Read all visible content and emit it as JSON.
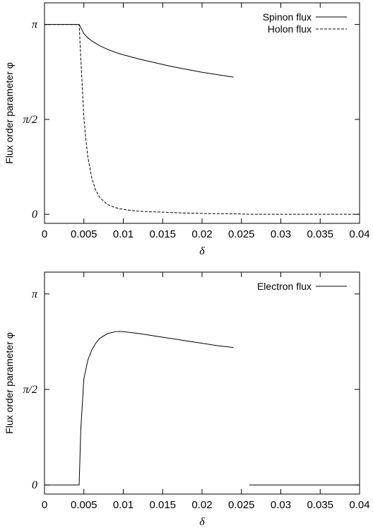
{
  "chart_data": [
    {
      "type": "line",
      "xlabel": "δ",
      "ylabel": "Flux order parameter φ",
      "xlim": [
        0,
        0.04
      ],
      "ylim": [
        -0.15,
        3.5
      ],
      "x_ticks": [
        0,
        0.005,
        0.01,
        0.015,
        0.02,
        0.025,
        0.03,
        0.035,
        0.04
      ],
      "x_tick_labels": [
        "0",
        "0.005",
        "0.01",
        "0.015",
        "0.02",
        "0.025",
        "0.03",
        "0.035",
        "0.04"
      ],
      "y_ticks": [
        0,
        1.5708,
        3.1416
      ],
      "y_tick_labels": [
        "0",
        "π/2",
        "π"
      ],
      "legend_position": "top-right",
      "grid": false,
      "series": [
        {
          "name": "Spinon flux",
          "style": "solid",
          "x": [
            0,
            0.0044,
            0.0046,
            0.005,
            0.0055,
            0.006,
            0.007,
            0.008,
            0.009,
            0.01,
            0.012,
            0.014,
            0.016,
            0.018,
            0.02,
            0.022,
            0.024
          ],
          "y": [
            3.1416,
            3.1416,
            3.09,
            2.99,
            2.92,
            2.87,
            2.79,
            2.73,
            2.68,
            2.64,
            2.57,
            2.51,
            2.45,
            2.4,
            2.35,
            2.31,
            2.27
          ]
        },
        {
          "name": "Holon flux",
          "style": "dashed",
          "x": [
            0,
            0.0044,
            0.0046,
            0.0048,
            0.005,
            0.0052,
            0.0055,
            0.006,
            0.0065,
            0.007,
            0.008,
            0.009,
            0.01,
            0.012,
            0.014,
            0.016,
            0.018,
            0.02,
            0.022,
            0.024,
            0.026,
            0.03,
            0.035,
            0.04
          ],
          "y": [
            3.1416,
            3.1416,
            2.6,
            2.1,
            1.6,
            1.3,
            0.95,
            0.6,
            0.4,
            0.28,
            0.16,
            0.11,
            0.08,
            0.05,
            0.04,
            0.03,
            0.02,
            0.015,
            0.01,
            0.008,
            0,
            0,
            0,
            0
          ]
        }
      ]
    },
    {
      "type": "line",
      "xlabel": "δ",
      "ylabel": "Flux order parameter φ",
      "xlim": [
        0,
        0.04
      ],
      "ylim": [
        -0.15,
        3.5
      ],
      "x_ticks": [
        0,
        0.005,
        0.01,
        0.015,
        0.02,
        0.025,
        0.03,
        0.035,
        0.04
      ],
      "x_tick_labels": [
        "0",
        "0.005",
        "0.01",
        "0.015",
        "0.02",
        "0.025",
        "0.03",
        "0.035",
        "0.04"
      ],
      "y_ticks": [
        0,
        1.5708,
        3.1416
      ],
      "y_tick_labels": [
        "0",
        "π/2",
        "π"
      ],
      "legend_position": "top-right",
      "grid": false,
      "series": [
        {
          "name": "Electron flux",
          "style": "solid",
          "x": [
            0,
            0.0044,
            0.0046,
            0.005,
            0.0055,
            0.006,
            0.0065,
            0.007,
            0.008,
            0.009,
            0.0095,
            0.01,
            0.012,
            0.014,
            0.016,
            0.018,
            0.02,
            0.022,
            0.024,
            0.024,
            0.026,
            0.03,
            0.035,
            0.04
          ],
          "y": [
            0,
            0,
            0.9,
            1.75,
            2.05,
            2.22,
            2.33,
            2.41,
            2.49,
            2.52,
            2.525,
            2.52,
            2.49,
            2.45,
            2.41,
            2.37,
            2.33,
            2.29,
            2.26,
            null,
            0,
            0,
            0,
            0
          ]
        }
      ]
    }
  ]
}
